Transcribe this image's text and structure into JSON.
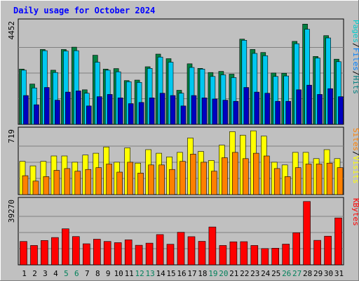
{
  "chart_data": {
    "type": "bar",
    "title": "Daily usage for October 2024",
    "categories": [
      "1",
      "2",
      "3",
      "4",
      "5",
      "6",
      "7",
      "8",
      "9",
      "10",
      "11",
      "12",
      "13",
      "14",
      "15",
      "16",
      "17",
      "18",
      "19",
      "20",
      "21",
      "22",
      "23",
      "24",
      "25",
      "26",
      "27",
      "28",
      "29",
      "30",
      "31"
    ],
    "weekend_days": [
      "5",
      "6",
      "12",
      "13",
      "19",
      "20",
      "26",
      "27"
    ],
    "panels": [
      {
        "name": "hits-files-pages",
        "max_label": "4452",
        "ylim": [
          0,
          4452
        ],
        "side_label": [
          "Pages",
          "/",
          "Files",
          "/",
          "Hits"
        ],
        "side_colors": [
          "#00cccc",
          "#000000",
          "#0080ff",
          "#000000",
          "#008080"
        ],
        "series": [
          {
            "name": "Hits",
            "color": "#008040",
            "values": [
              2400,
              1750,
              3250,
              2350,
              3250,
              3350,
              1500,
              3000,
              2400,
              2420,
              1900,
              1920,
              2500,
              3050,
              2850,
              1480,
              2630,
              2430,
              2250,
              2300,
              2180,
              3700,
              3250,
              3120,
              2230,
              2220,
              3600,
              4352,
              2950,
              3850,
              2830
            ]
          },
          {
            "name": "Files",
            "color": "#00c8f0",
            "values": [
              2350,
              1580,
              3200,
              2250,
              3180,
              3200,
              1350,
              2700,
              2350,
              2280,
              1850,
              1820,
              2430,
              2920,
              2700,
              1350,
              2470,
              2400,
              2080,
              2150,
              2030,
              3650,
              3080,
              2980,
              2080,
              2100,
              3500,
              4130,
              2880,
              3750,
              2720
            ]
          },
          {
            "name": "Pages",
            "color": "#0000c0",
            "values": [
              1250,
              850,
              1600,
              1050,
              1400,
              1450,
              800,
              1200,
              1300,
              1150,
              900,
              950,
              1150,
              1350,
              1250,
              800,
              1250,
              1150,
              1100,
              1050,
              1000,
              1600,
              1400,
              1350,
              1000,
              1000,
              1500,
              1700,
              1300,
              1550,
              1200
            ]
          }
        ]
      },
      {
        "name": "visits-sites",
        "max_label": "719",
        "ylim": [
          0,
          719
        ],
        "side_label": [
          "Sites",
          "/",
          "Visits"
        ],
        "side_colors": [
          "#ff8000",
          "#000000",
          "#ffff00"
        ],
        "series": [
          {
            "name": "Visits",
            "color": "#ffff00",
            "values": [
              370,
              320,
              370,
              430,
              430,
              360,
              440,
              460,
              530,
              360,
              520,
              350,
              500,
              460,
              420,
              470,
              630,
              480,
              380,
              550,
              700,
              660,
              710,
              650,
              360,
              330,
              470,
              470,
              400,
              500,
              400
            ]
          },
          {
            "name": "Sites",
            "color": "#ff8000",
            "values": [
              210,
              150,
              200,
              270,
              290,
              260,
              280,
              300,
              340,
              250,
              360,
              240,
              330,
              330,
              280,
              370,
              450,
              360,
              260,
              410,
              470,
              400,
              460,
              430,
              290,
              200,
              300,
              340,
              340,
              350,
              300
            ]
          }
        ]
      },
      {
        "name": "kbytes",
        "max_label": "39270",
        "ylim": [
          0,
          39270
        ],
        "side_label": [
          "KBytes"
        ],
        "side_colors": [
          "#ff0000"
        ],
        "series": [
          {
            "name": "KBytes",
            "color": "#ff0000",
            "values": [
              14200,
              11800,
              14800,
              16600,
              21900,
              17200,
              12800,
              15600,
              14200,
              13500,
              15200,
              11900,
              13200,
              18400,
              12500,
              19800,
              17100,
              14300,
              23000,
              11800,
              14000,
              14100,
              11800,
              9900,
              10100,
              12600,
              19500,
              38500,
              14900,
              17400,
              28500
            ]
          }
        ]
      }
    ]
  }
}
